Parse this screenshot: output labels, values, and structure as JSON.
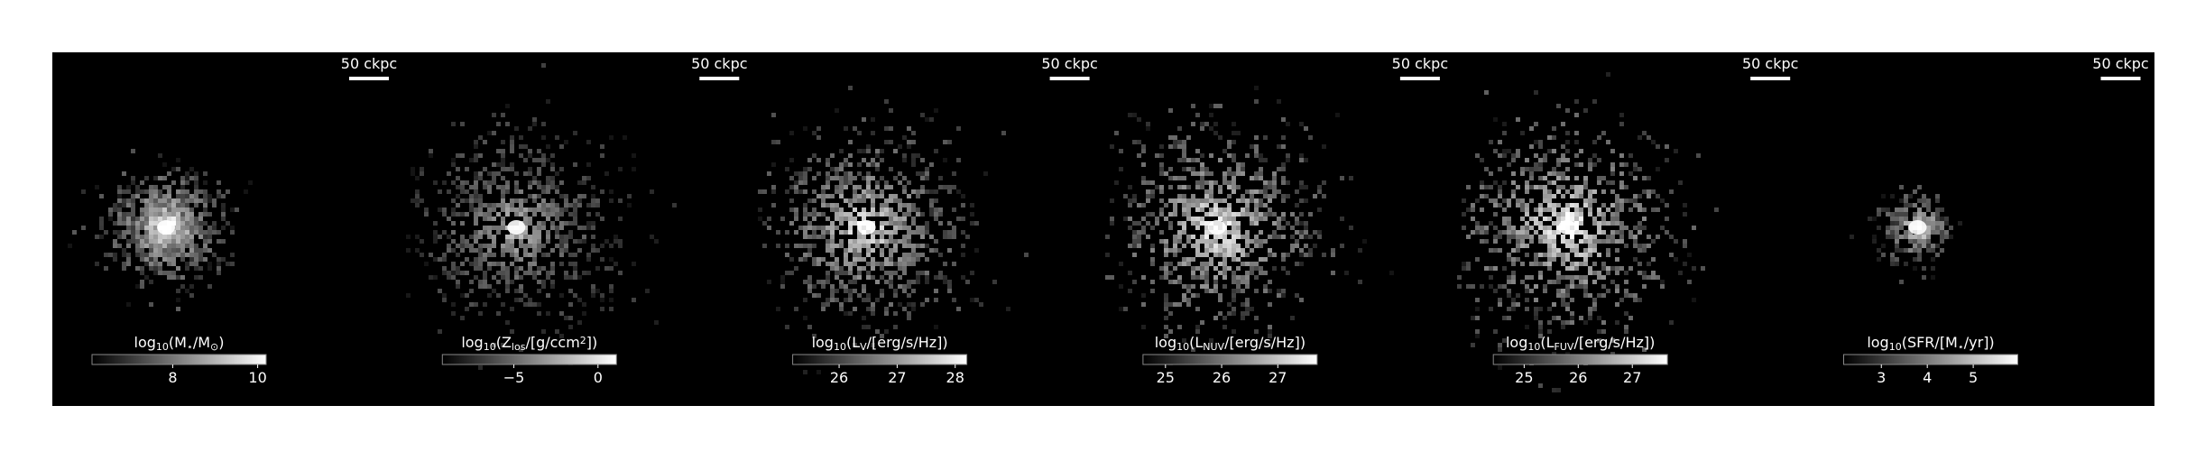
{
  "chart_data": [
    {
      "type": "image",
      "scalebar_label": "50 ckpc",
      "colorbar_label": [
        {
          "t": "log"
        },
        {
          "t": "10",
          "sub": true
        },
        {
          "t": "(M"
        },
        {
          "t": "⋆",
          "sub": true
        },
        {
          "t": "/M"
        },
        {
          "t": "⊙",
          "sub": true
        },
        {
          "t": ")"
        }
      ],
      "clim": [
        6.1,
        10.2
      ],
      "cticks": [
        8,
        10
      ]
    },
    {
      "type": "image",
      "scalebar_label": "50 ckpc",
      "colorbar_label": [
        {
          "t": "log"
        },
        {
          "t": "10",
          "sub": true
        },
        {
          "t": "(Z"
        },
        {
          "t": "los",
          "sub": true
        },
        {
          "t": "/[g/ccm"
        },
        {
          "t": "2",
          "sup": true
        },
        {
          "t": "])"
        }
      ],
      "clim": [
        -9.25,
        1.1
      ],
      "cticks": [
        {
          "value": -5,
          "label": "−5"
        },
        0
      ]
    },
    {
      "type": "image",
      "scalebar_label": "50 ckpc",
      "colorbar_label": [
        {
          "t": "log"
        },
        {
          "t": "10",
          "sub": true
        },
        {
          "t": "(L"
        },
        {
          "t": "V",
          "sub": true
        },
        {
          "t": "/[erg/s/Hz])"
        }
      ],
      "clim": [
        25.2,
        28.2
      ],
      "cticks": [
        26,
        27,
        28
      ]
    },
    {
      "type": "image",
      "scalebar_label": "50 ckpc",
      "colorbar_label": [
        {
          "t": "log"
        },
        {
          "t": "10",
          "sub": true
        },
        {
          "t": "(L"
        },
        {
          "t": "NUV",
          "sub": true
        },
        {
          "t": "/[erg/s/Hz])"
        }
      ],
      "clim": [
        24.6,
        27.7
      ],
      "cticks": [
        25,
        26,
        27
      ]
    },
    {
      "type": "image",
      "scalebar_label": "50 ckpc",
      "colorbar_label": [
        {
          "t": "log"
        },
        {
          "t": "10",
          "sub": true
        },
        {
          "t": "(L"
        },
        {
          "t": "FUV",
          "sub": true
        },
        {
          "t": "/[erg/s/Hz])"
        }
      ],
      "clim": [
        24.43,
        27.65
      ],
      "cticks": [
        25,
        26,
        27
      ]
    },
    {
      "type": "image",
      "scalebar_label": "50 ckpc",
      "colorbar_label": [
        {
          "t": "log"
        },
        {
          "t": "10",
          "sub": true
        },
        {
          "t": "(SFR/[M"
        },
        {
          "t": "⋆",
          "sub": true
        },
        {
          "t": "/yr])"
        }
      ],
      "clim": [
        2.18,
        5.97
      ],
      "cticks": [
        3,
        4,
        5
      ]
    }
  ]
}
